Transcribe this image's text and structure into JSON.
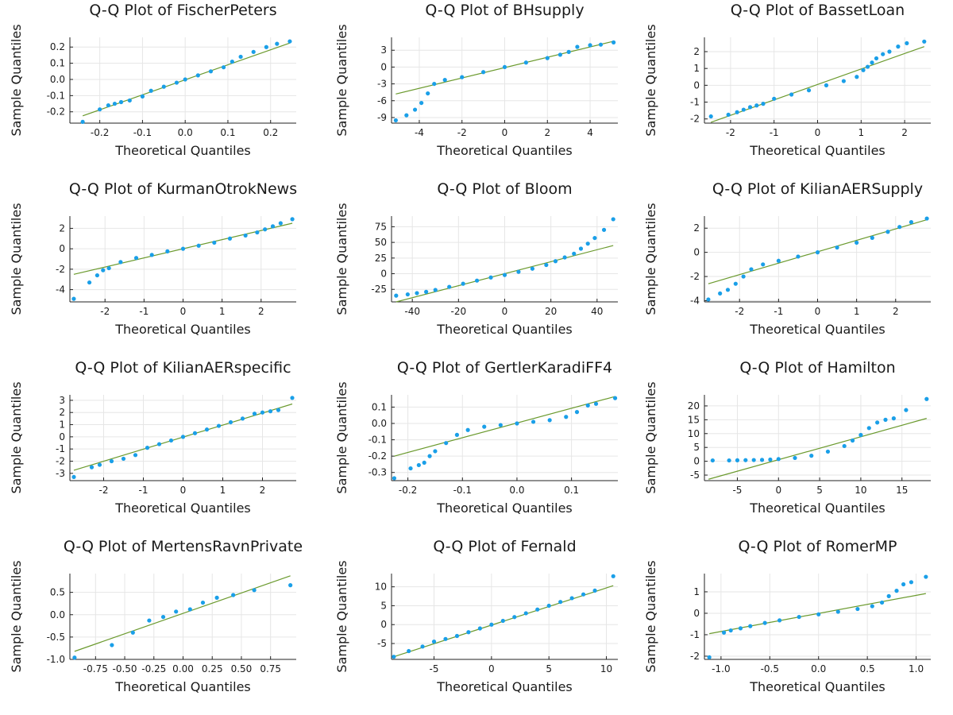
{
  "colors": {
    "points": "#1a9fe8",
    "refline": "#6b9a2e",
    "grid": "#e6e6e6",
    "axis": "#222222"
  },
  "chart_data": [
    {
      "type": "scatter",
      "title": "Q-Q Plot of FischerPeters",
      "xlabel": "Theoretical Quantiles",
      "ylabel": "Sample Quantiles",
      "xlim": [
        -0.27,
        0.26
      ],
      "ylim": [
        -0.27,
        0.26
      ],
      "xticks": [
        -0.2,
        -0.1,
        0.0,
        0.1,
        0.2
      ],
      "xticklabels": [
        "-0.2",
        "-0.1",
        "0.0",
        "0.1",
        "0.2"
      ],
      "yticks": [
        -0.2,
        -0.1,
        0.0,
        0.1,
        0.2
      ],
      "yticklabels": [
        "-0.2",
        "-0.1",
        "0.0",
        "0.1",
        "0.2"
      ],
      "grid": true,
      "line": {
        "x": [
          -0.24,
          0.245
        ],
        "y": [
          -0.225,
          0.225
        ]
      },
      "series": [
        {
          "x": [
            -0.24,
            -0.2,
            -0.18,
            -0.165,
            -0.15,
            -0.13,
            -0.1,
            -0.08,
            -0.05,
            -0.02,
            0.0,
            0.03,
            0.06,
            0.09,
            0.11,
            0.13,
            0.16,
            0.19,
            0.215,
            0.245
          ],
          "y": [
            -0.262,
            -0.185,
            -0.16,
            -0.15,
            -0.14,
            -0.13,
            -0.105,
            -0.07,
            -0.045,
            -0.02,
            0.0,
            0.025,
            0.05,
            0.075,
            0.11,
            0.14,
            0.17,
            0.2,
            0.22,
            0.235
          ]
        }
      ]
    },
    {
      "type": "scatter",
      "title": "Q-Q Plot of BHsupply",
      "xlabel": "Theoretical Quantiles",
      "ylabel": "Sample Quantiles",
      "xlim": [
        -5.3,
        5.3
      ],
      "ylim": [
        -10.0,
        5.3
      ],
      "xticks": [
        -4,
        -2,
        0,
        2,
        4
      ],
      "xticklabels": [
        "-4",
        "-2",
        "0",
        "2",
        "4"
      ],
      "yticks": [
        -9,
        -6,
        -3,
        0,
        3
      ],
      "yticklabels": [
        "-9",
        "-6",
        "-3",
        "0",
        "3"
      ],
      "grid": true,
      "line": {
        "x": [
          -5.1,
          5.1
        ],
        "y": [
          -4.8,
          4.6
        ]
      },
      "series": [
        {
          "x": [
            -5.1,
            -4.6,
            -4.2,
            -3.9,
            -3.6,
            -3.3,
            -2.8,
            -2.0,
            -1.0,
            0.0,
            1.0,
            2.0,
            2.6,
            3.0,
            3.4,
            4.0,
            4.5,
            5.1
          ],
          "y": [
            -9.5,
            -8.6,
            -7.6,
            -6.4,
            -4.7,
            -3.0,
            -2.3,
            -1.8,
            -0.9,
            0.0,
            0.8,
            1.6,
            2.2,
            2.7,
            3.6,
            3.9,
            4.0,
            4.4
          ]
        }
      ]
    },
    {
      "type": "scatter",
      "title": "Q-Q Plot of BassetLoan",
      "xlabel": "Theoretical Quantiles",
      "ylabel": "Sample Quantiles",
      "xlim": [
        -2.6,
        2.6
      ],
      "ylim": [
        -2.25,
        2.85
      ],
      "xticks": [
        -2,
        -1,
        0,
        1,
        2
      ],
      "xticklabels": [
        "-2",
        "-1",
        "0",
        "1",
        "2"
      ],
      "yticks": [
        -2,
        -1,
        0,
        1,
        2
      ],
      "yticklabels": [
        "-2",
        "-1",
        "0",
        "1",
        "2"
      ],
      "grid": true,
      "line": {
        "x": [
          -2.45,
          2.45
        ],
        "y": [
          -2.2,
          2.3
        ]
      },
      "series": [
        {
          "x": [
            -2.45,
            -2.05,
            -1.85,
            -1.7,
            -1.55,
            -1.4,
            -1.25,
            -1.0,
            -0.6,
            -0.2,
            0.2,
            0.6,
            0.9,
            1.05,
            1.15,
            1.25,
            1.35,
            1.5,
            1.65,
            1.85,
            2.05,
            2.45
          ],
          "y": [
            -1.85,
            -1.75,
            -1.6,
            -1.45,
            -1.3,
            -1.2,
            -1.1,
            -0.8,
            -0.55,
            -0.3,
            0.0,
            0.25,
            0.5,
            0.9,
            1.1,
            1.35,
            1.6,
            1.85,
            2.0,
            2.3,
            2.5,
            2.6
          ]
        }
      ]
    },
    {
      "type": "scatter",
      "title": "Q-Q Plot of KurmanOtrokNews",
      "xlabel": "Theoretical Quantiles",
      "ylabel": "Sample Quantiles",
      "xlim": [
        -2.9,
        2.9
      ],
      "ylim": [
        -5.2,
        3.2
      ],
      "xticks": [
        -2,
        -1,
        0,
        1,
        2
      ],
      "xticklabels": [
        "-2",
        "-1",
        "0",
        "1",
        "2"
      ],
      "yticks": [
        -4,
        -2,
        0,
        2
      ],
      "yticklabels": [
        "-4",
        "-2",
        "0",
        "2"
      ],
      "grid": true,
      "line": {
        "x": [
          -2.8,
          2.8
        ],
        "y": [
          -2.5,
          2.5
        ]
      },
      "series": [
        {
          "x": [
            -2.8,
            -2.4,
            -2.2,
            -2.05,
            -1.9,
            -1.6,
            -1.2,
            -0.8,
            -0.4,
            0.0,
            0.4,
            0.8,
            1.2,
            1.6,
            1.9,
            2.1,
            2.3,
            2.5,
            2.8
          ],
          "y": [
            -4.9,
            -3.3,
            -2.6,
            -2.1,
            -1.9,
            -1.3,
            -0.9,
            -0.6,
            -0.25,
            0.0,
            0.3,
            0.6,
            1.0,
            1.3,
            1.6,
            1.9,
            2.2,
            2.5,
            2.9
          ]
        }
      ]
    },
    {
      "type": "scatter",
      "title": "Q-Q Plot of Bloom",
      "xlabel": "Theoretical Quantiles",
      "ylabel": "Sample Quantiles",
      "xlim": [
        -49,
        49
      ],
      "ylim": [
        -45,
        92
      ],
      "xticks": [
        -40,
        -20,
        0,
        20,
        40
      ],
      "xticklabels": [
        "-40",
        "-20",
        "0",
        "20",
        "40"
      ],
      "yticks": [
        -25,
        0,
        25,
        50,
        75
      ],
      "yticklabels": [
        "-25",
        "0",
        "25",
        "50",
        "75"
      ],
      "grid": true,
      "line": {
        "x": [
          -47,
          47
        ],
        "y": [
          -45,
          45
        ]
      },
      "series": [
        {
          "x": [
            -47,
            -42,
            -38,
            -34,
            -30,
            -24,
            -18,
            -12,
            -6,
            0,
            6,
            12,
            18,
            22,
            26,
            30,
            33,
            36,
            39,
            43,
            47
          ],
          "y": [
            -35,
            -33,
            -31,
            -29,
            -26,
            -21,
            -16,
            -11,
            -6,
            -2,
            3,
            8,
            14,
            20,
            26,
            32,
            40,
            48,
            57,
            70,
            87
          ]
        }
      ]
    },
    {
      "type": "scatter",
      "title": "Q-Q Plot of KilianAERSupply",
      "xlabel": "Theoretical Quantiles",
      "ylabel": "Sample Quantiles",
      "xlim": [
        -2.9,
        2.9
      ],
      "ylim": [
        -4.1,
        3.0
      ],
      "xticks": [
        -2,
        -1,
        0,
        1,
        2
      ],
      "xticklabels": [
        "-2",
        "-1",
        "0",
        "1",
        "2"
      ],
      "yticks": [
        -4,
        -2,
        0,
        2
      ],
      "yticklabels": [
        "-4",
        "-2",
        "0",
        "2"
      ],
      "grid": true,
      "line": {
        "x": [
          -2.8,
          2.8
        ],
        "y": [
          -2.6,
          2.7
        ]
      },
      "series": [
        {
          "x": [
            -2.8,
            -2.5,
            -2.3,
            -2.1,
            -1.9,
            -1.7,
            -1.4,
            -1.0,
            -0.5,
            0.0,
            0.5,
            1.0,
            1.4,
            1.8,
            2.1,
            2.4,
            2.8
          ],
          "y": [
            -3.9,
            -3.4,
            -3.1,
            -2.6,
            -2.0,
            -1.4,
            -1.0,
            -0.7,
            -0.35,
            0.0,
            0.4,
            0.8,
            1.2,
            1.7,
            2.1,
            2.5,
            2.8
          ]
        }
      ]
    },
    {
      "type": "scatter",
      "title": "Q-Q Plot of KilianAERspecific",
      "xlabel": "Theoretical Quantiles",
      "ylabel": "Sample Quantiles",
      "xlim": [
        -2.85,
        2.85
      ],
      "ylim": [
        -3.6,
        3.45
      ],
      "xticks": [
        -2,
        -1,
        0,
        1,
        2
      ],
      "xticklabels": [
        "-2",
        "-1",
        "0",
        "1",
        "2"
      ],
      "yticks": [
        -3,
        -2,
        -1,
        0,
        1,
        2,
        3
      ],
      "yticklabels": [
        "-3",
        "-2",
        "-1",
        "0",
        "1",
        "2",
        "3"
      ],
      "grid": true,
      "line": {
        "x": [
          -2.75,
          2.75
        ],
        "y": [
          -2.75,
          2.7
        ]
      },
      "series": [
        {
          "x": [
            -2.75,
            -2.3,
            -2.1,
            -1.8,
            -1.5,
            -1.2,
            -0.9,
            -0.6,
            -0.3,
            0.0,
            0.3,
            0.6,
            0.9,
            1.2,
            1.5,
            1.8,
            2.0,
            2.2,
            2.4,
            2.75
          ],
          "y": [
            -3.3,
            -2.5,
            -2.3,
            -2.0,
            -1.8,
            -1.5,
            -0.9,
            -0.6,
            -0.3,
            0.0,
            0.3,
            0.6,
            0.9,
            1.2,
            1.5,
            1.9,
            2.0,
            2.1,
            2.2,
            3.2
          ]
        }
      ]
    },
    {
      "type": "scatter",
      "title": "Q-Q Plot of GertlerKaradiFF4",
      "xlabel": "Theoretical Quantiles",
      "ylabel": "Sample Quantiles",
      "xlim": [
        -0.23,
        0.185
      ],
      "ylim": [
        -0.35,
        0.175
      ],
      "xticks": [
        -0.2,
        -0.1,
        0.0,
        0.1
      ],
      "xticklabels": [
        "-0.2",
        "-0.1",
        "0.0",
        "0.1"
      ],
      "yticks": [
        -0.3,
        -0.2,
        -0.1,
        0.0,
        0.1
      ],
      "yticklabels": [
        "-0.3",
        "-0.2",
        "-0.1",
        "0.0",
        "0.1"
      ],
      "grid": true,
      "line": {
        "x": [
          -0.225,
          0.18
        ],
        "y": [
          -0.2,
          0.165
        ]
      },
      "series": [
        {
          "x": [
            -0.225,
            -0.195,
            -0.18,
            -0.17,
            -0.16,
            -0.15,
            -0.13,
            -0.11,
            -0.09,
            -0.06,
            -0.03,
            0.0,
            0.03,
            0.06,
            0.09,
            0.11,
            0.13,
            0.145,
            0.18
          ],
          "y": [
            -0.335,
            -0.275,
            -0.255,
            -0.24,
            -0.2,
            -0.17,
            -0.12,
            -0.07,
            -0.04,
            -0.02,
            -0.01,
            0.0,
            0.01,
            0.02,
            0.04,
            0.07,
            0.11,
            0.12,
            0.155
          ]
        }
      ]
    },
    {
      "type": "scatter",
      "title": "Q-Q Plot of Hamilton",
      "xlabel": "Theoretical Quantiles",
      "ylabel": "Sample Quantiles",
      "xlim": [
        -9,
        18.5
      ],
      "ylim": [
        -7,
        24
      ],
      "xticks": [
        -5,
        0,
        5,
        10,
        15
      ],
      "xticklabels": [
        "-5",
        "0",
        "5",
        "10",
        "15"
      ],
      "yticks": [
        -5,
        0,
        5,
        10,
        15,
        20
      ],
      "yticklabels": [
        "-5",
        "0",
        "5",
        "10",
        "15",
        "20"
      ],
      "grid": true,
      "line": {
        "x": [
          -8.5,
          18
        ],
        "y": [
          -6.5,
          15.5
        ]
      },
      "series": [
        {
          "x": [
            -8,
            -6,
            -5,
            -4,
            -3,
            -2,
            -1,
            0,
            2,
            4,
            6,
            8,
            9,
            10,
            11,
            12,
            13,
            14,
            15.5,
            18
          ],
          "y": [
            0.3,
            0.3,
            0.35,
            0.4,
            0.45,
            0.5,
            0.6,
            0.8,
            1.2,
            2.0,
            3.5,
            5.5,
            7.5,
            9.5,
            12.0,
            14.0,
            15.0,
            15.5,
            18.5,
            22.5
          ]
        }
      ]
    },
    {
      "type": "scatter",
      "title": "Q-Q Plot of MertensRavnPrivate",
      "xlabel": "Theoretical Quantiles",
      "ylabel": "Sample Quantiles",
      "xlim": [
        -0.97,
        0.97
      ],
      "ylim": [
        -1.0,
        0.92
      ],
      "xticks": [
        -0.75,
        -0.5,
        -0.25,
        0.0,
        0.25,
        0.5,
        0.75
      ],
      "xticklabels": [
        "-0.75",
        "-0.50",
        "-0.25",
        "0.00",
        "0.25",
        "0.50",
        "0.75"
      ],
      "yticks": [
        -1.0,
        -0.5,
        0.0,
        0.5
      ],
      "yticklabels": [
        "-1.0",
        "-0.5",
        "0.0",
        "0.5"
      ],
      "grid": true,
      "line": {
        "x": [
          -0.93,
          0.92
        ],
        "y": [
          -0.82,
          0.87
        ]
      },
      "series": [
        {
          "x": [
            -0.93,
            -0.61,
            -0.43,
            -0.29,
            -0.17,
            -0.06,
            0.06,
            0.17,
            0.29,
            0.43,
            0.61,
            0.92
          ],
          "y": [
            -0.96,
            -0.68,
            -0.4,
            -0.13,
            -0.05,
            0.07,
            0.12,
            0.27,
            0.38,
            0.44,
            0.55,
            0.66
          ]
        }
      ]
    },
    {
      "type": "scatter",
      "title": "Q-Q Plot of Fernald",
      "xlabel": "Theoretical Quantiles",
      "ylabel": "Sample Quantiles",
      "xlim": [
        -8.7,
        11.0
      ],
      "ylim": [
        -9.2,
        13.5
      ],
      "xticks": [
        -5,
        0,
        5,
        10
      ],
      "xticklabels": [
        "-5",
        "0",
        "5",
        "10"
      ],
      "yticks": [
        -5,
        0,
        5,
        10
      ],
      "yticklabels": [
        "-5",
        "0",
        "5",
        "10"
      ],
      "grid": true,
      "line": {
        "x": [
          -8.5,
          10.6
        ],
        "y": [
          -8.5,
          10.3
        ]
      },
      "series": [
        {
          "x": [
            -8.5,
            -7.2,
            -6.0,
            -5.0,
            -4.0,
            -3.0,
            -2.0,
            -1.0,
            0.0,
            1.0,
            2.0,
            3.0,
            4.0,
            5.0,
            6.0,
            7.0,
            8.0,
            9.0,
            10.6
          ],
          "y": [
            -8.5,
            -7.0,
            -5.8,
            -4.5,
            -3.8,
            -3.0,
            -2.0,
            -1.0,
            0.0,
            1.0,
            2.0,
            3.0,
            4.0,
            5.0,
            6.0,
            7.0,
            8.0,
            9.0,
            12.8
          ]
        }
      ]
    },
    {
      "type": "scatter",
      "title": "Q-Q Plot of RomerMP",
      "xlabel": "Theoretical Quantiles",
      "ylabel": "Sample Quantiles",
      "xlim": [
        -1.17,
        1.15
      ],
      "ylim": [
        -2.15,
        1.85
      ],
      "xticks": [
        -1.0,
        -0.5,
        0.0,
        0.5,
        1.0
      ],
      "xticklabels": [
        "-1.0",
        "-0.5",
        "0.0",
        "0.5",
        "1.0"
      ],
      "yticks": [
        -2,
        -1,
        0,
        1
      ],
      "yticklabels": [
        "-2",
        "-1",
        "0",
        "1"
      ],
      "grid": true,
      "line": {
        "x": [
          -1.12,
          1.1
        ],
        "y": [
          -0.95,
          0.92
        ]
      },
      "series": [
        {
          "x": [
            -1.12,
            -0.97,
            -0.9,
            -0.8,
            -0.7,
            -0.55,
            -0.4,
            -0.2,
            0.0,
            0.2,
            0.4,
            0.55,
            0.65,
            0.72,
            0.8,
            0.87,
            0.95,
            1.1
          ],
          "y": [
            -2.05,
            -0.9,
            -0.8,
            -0.7,
            -0.6,
            -0.45,
            -0.33,
            -0.17,
            -0.05,
            0.07,
            0.2,
            0.33,
            0.5,
            0.8,
            1.05,
            1.35,
            1.45,
            1.7
          ]
        }
      ]
    }
  ]
}
